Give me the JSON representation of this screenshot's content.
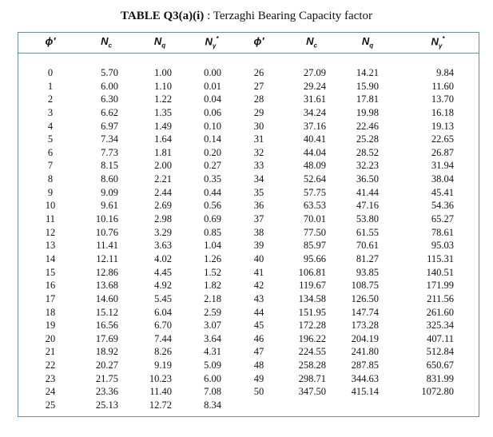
{
  "title": {
    "label": "TABLE Q3(a)(i)",
    "text": ": Terzaghi Bearing Capacity factor"
  },
  "table": {
    "headers": [
      {
        "main": "ϕ′"
      },
      {
        "main": "N",
        "sub": "c"
      },
      {
        "main": "N",
        "sub": "q"
      },
      {
        "main": "N",
        "sub": "γ",
        "sup": "*"
      },
      {
        "main": "ϕ′"
      },
      {
        "main": "N",
        "sub": "c"
      },
      {
        "main": "N",
        "sub": "q"
      },
      {
        "main": "N",
        "sub": "γ",
        "sup": "*"
      }
    ],
    "rows": [
      [
        "0",
        "5.70",
        "1.00",
        "0.00",
        "26",
        "27.09",
        "14.21",
        "9.84"
      ],
      [
        "1",
        "6.00",
        "1.10",
        "0.01",
        "27",
        "29.24",
        "15.90",
        "11.60"
      ],
      [
        "2",
        "6.30",
        "1.22",
        "0.04",
        "28",
        "31.61",
        "17.81",
        "13.70"
      ],
      [
        "3",
        "6.62",
        "1.35",
        "0.06",
        "29",
        "34.24",
        "19.98",
        "16.18"
      ],
      [
        "4",
        "6.97",
        "1.49",
        "0.10",
        "30",
        "37.16",
        "22.46",
        "19.13"
      ],
      [
        "5",
        "7.34",
        "1.64",
        "0.14",
        "31",
        "40.41",
        "25.28",
        "22.65"
      ],
      [
        "6",
        "7.73",
        "1.81",
        "0.20",
        "32",
        "44.04",
        "28.52",
        "26.87"
      ],
      [
        "7",
        "8.15",
        "2.00",
        "0.27",
        "33",
        "48.09",
        "32.23",
        "31.94"
      ],
      [
        "8",
        "8.60",
        "2.21",
        "0.35",
        "34",
        "52.64",
        "36.50",
        "38.04"
      ],
      [
        "9",
        "9.09",
        "2.44",
        "0.44",
        "35",
        "57.75",
        "41.44",
        "45.41"
      ],
      [
        "10",
        "9.61",
        "2.69",
        "0.56",
        "36",
        "63.53",
        "47.16",
        "54.36"
      ],
      [
        "11",
        "10.16",
        "2.98",
        "0.69",
        "37",
        "70.01",
        "53.80",
        "65.27"
      ],
      [
        "12",
        "10.76",
        "3.29",
        "0.85",
        "38",
        "77.50",
        "61.55",
        "78.61"
      ],
      [
        "13",
        "11.41",
        "3.63",
        "1.04",
        "39",
        "85.97",
        "70.61",
        "95.03"
      ],
      [
        "14",
        "12.11",
        "4.02",
        "1.26",
        "40",
        "95.66",
        "81.27",
        "115.31"
      ],
      [
        "15",
        "12.86",
        "4.45",
        "1.52",
        "41",
        "106.81",
        "93.85",
        "140.51"
      ],
      [
        "16",
        "13.68",
        "4.92",
        "1.82",
        "42",
        "119.67",
        "108.75",
        "171.99"
      ],
      [
        "17",
        "14.60",
        "5.45",
        "2.18",
        "43",
        "134.58",
        "126.50",
        "211.56"
      ],
      [
        "18",
        "15.12",
        "6.04",
        "2.59",
        "44",
        "151.95",
        "147.74",
        "261.60"
      ],
      [
        "19",
        "16.56",
        "6.70",
        "3.07",
        "45",
        "172.28",
        "173.28",
        "325.34"
      ],
      [
        "20",
        "17.69",
        "7.44",
        "3.64",
        "46",
        "196.22",
        "204.19",
        "407.11"
      ],
      [
        "21",
        "18.92",
        "8.26",
        "4.31",
        "47",
        "224.55",
        "241.80",
        "512.84"
      ],
      [
        "22",
        "20.27",
        "9.19",
        "5.09",
        "48",
        "258.28",
        "287.85",
        "650.67"
      ],
      [
        "23",
        "21.75",
        "10.23",
        "6.00",
        "49",
        "298.71",
        "344.63",
        "831.99"
      ],
      [
        "24",
        "23.36",
        "11.40",
        "7.08",
        "50",
        "347.50",
        "415.14",
        "1072.80"
      ],
      [
        "25",
        "25.13",
        "12.72",
        "8.34"
      ]
    ]
  }
}
